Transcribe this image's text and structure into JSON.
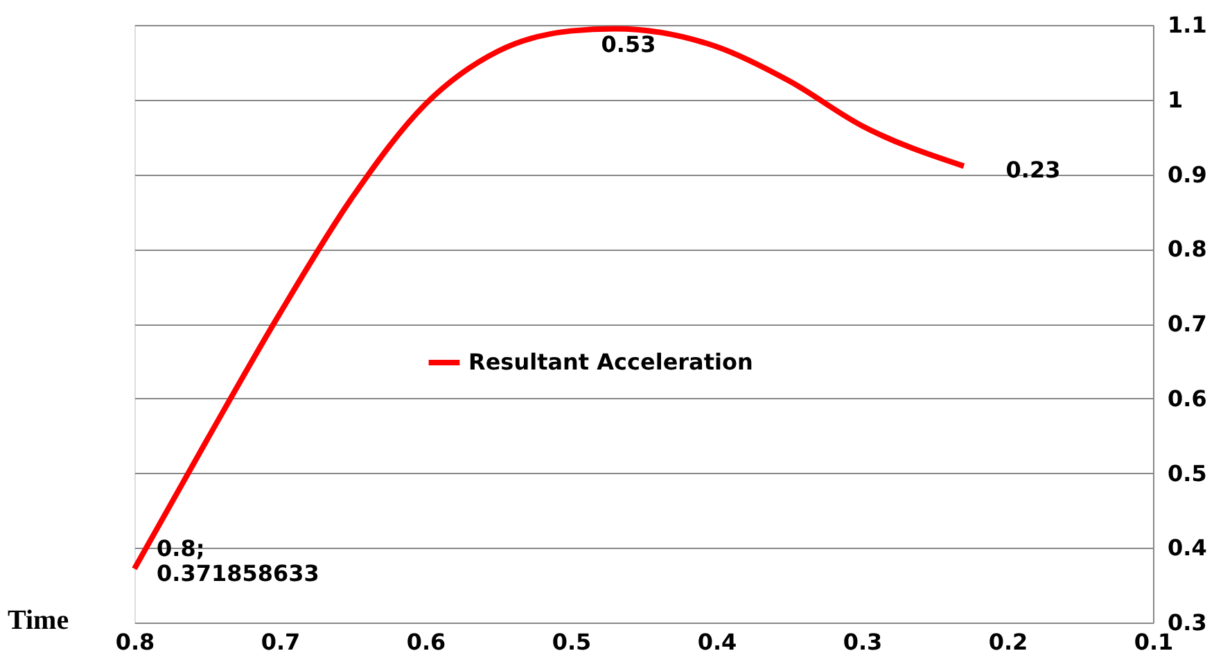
{
  "chart_data": {
    "type": "line",
    "xlabel": "Time",
    "x": [
      0.8,
      0.75,
      0.7,
      0.65,
      0.6,
      0.55,
      0.5,
      0.47,
      0.4,
      0.35,
      0.3,
      0.23
    ],
    "series": [
      {
        "name": "Resultant Acceleration",
        "color": "#ff0000",
        "values": [
          0.372,
          0.545,
          0.714,
          0.87,
          0.994,
          1.065,
          1.092,
          1.095,
          1.071,
          1.025,
          0.965,
          0.911
        ]
      }
    ],
    "xlim": [
      0.8,
      0.1
    ],
    "xticks": [
      0.8,
      0.7,
      0.6,
      0.5,
      0.4,
      0.3,
      0.2,
      0.1
    ],
    "ylim": [
      0.3,
      1.1
    ],
    "yticks": [
      0.3,
      0.4,
      0.5,
      0.6,
      0.7,
      0.8,
      0.9,
      1,
      1.1
    ],
    "grid": "y",
    "legend": "left",
    "marker": "none",
    "line_style": "solid",
    "annotations": [
      {
        "text": "0.8;\n0.371858633",
        "x": 0.8,
        "y": 0.372
      },
      {
        "text": "0.53",
        "x": 0.47,
        "y": 1.095
      },
      {
        "text": "0.23",
        "x": 0.23,
        "y": 0.911
      }
    ]
  }
}
